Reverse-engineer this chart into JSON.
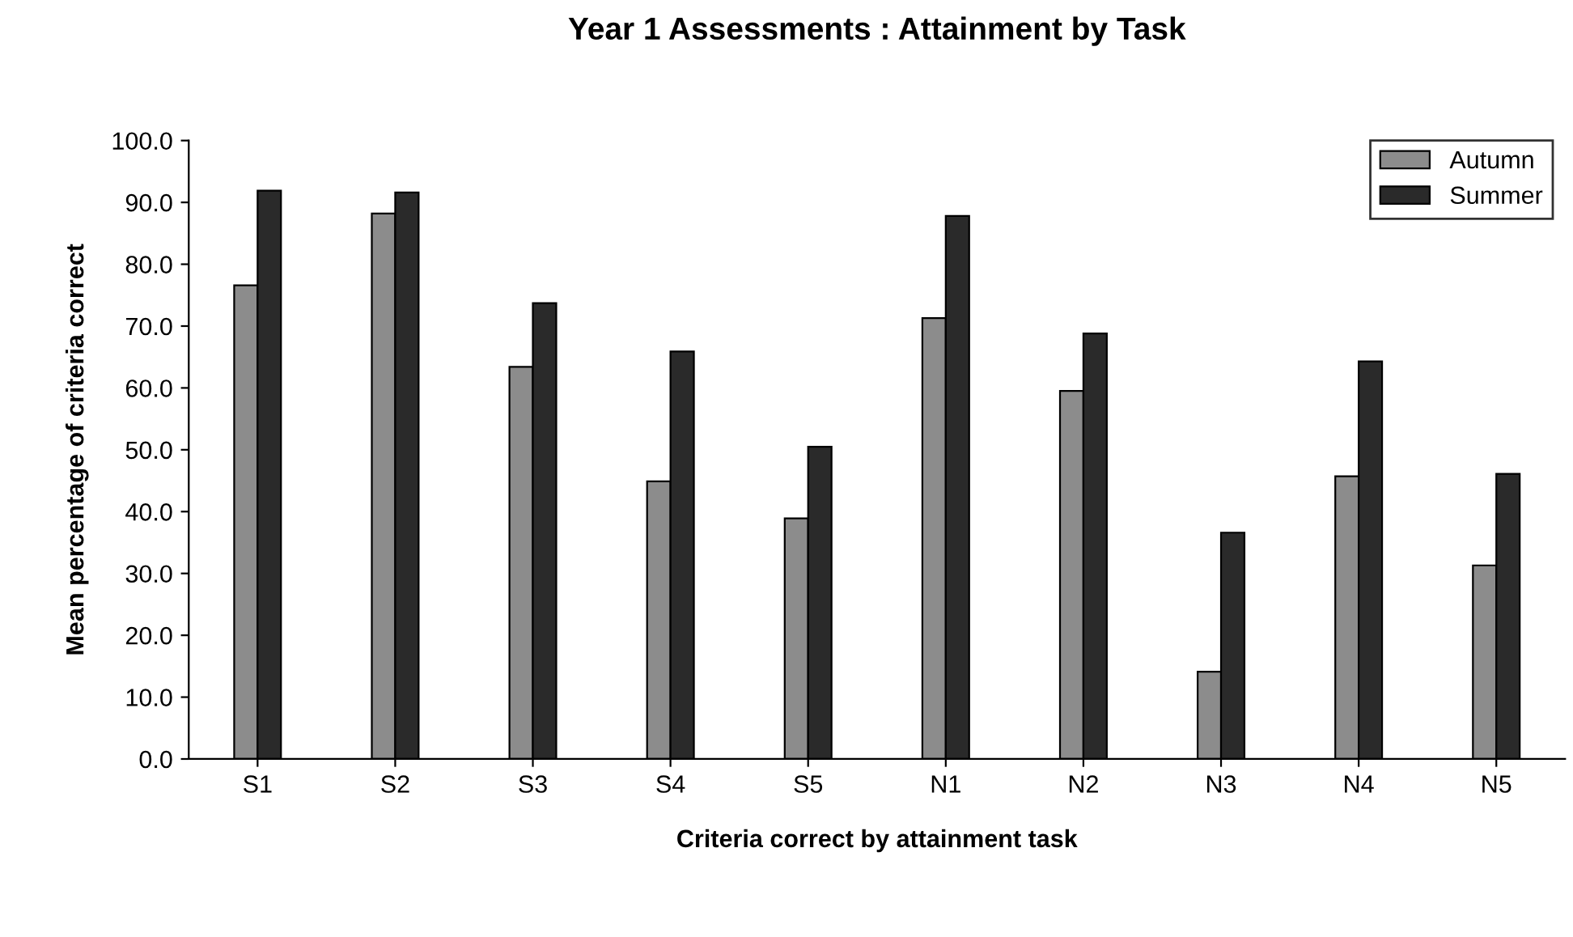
{
  "chart_data": {
    "type": "bar",
    "title": "Year 1 Assessments : Attainment by Task",
    "xlabel": "Criteria correct by attainment task",
    "ylabel": "Mean percentage of criteria correct",
    "categories": [
      "S1",
      "S2",
      "S3",
      "S4",
      "S5",
      "N1",
      "N2",
      "N3",
      "N4",
      "N5"
    ],
    "series": [
      {
        "name": "Autumn",
        "color": "#8c8c8c",
        "values": [
          76.6,
          88.2,
          63.4,
          44.9,
          38.9,
          71.3,
          59.5,
          14.1,
          45.7,
          31.3
        ]
      },
      {
        "name": "Summer",
        "color": "#2a2a2a",
        "values": [
          91.9,
          91.6,
          73.7,
          65.9,
          50.5,
          87.8,
          68.8,
          36.6,
          64.3,
          46.1
        ]
      }
    ],
    "ylim": [
      0,
      100
    ],
    "yticks": [
      {
        "value": 0,
        "label": "0.0"
      },
      {
        "value": 10,
        "label": "10.0"
      },
      {
        "value": 20,
        "label": "20.0"
      },
      {
        "value": 30,
        "label": "30.0"
      },
      {
        "value": 40,
        "label": "40.0"
      },
      {
        "value": 50,
        "label": "50.0"
      },
      {
        "value": 60,
        "label": "60.0"
      },
      {
        "value": 70,
        "label": "70.0"
      },
      {
        "value": 80,
        "label": "80.0"
      },
      {
        "value": 90,
        "label": "90.0"
      },
      {
        "value": 100,
        "label": "100.0"
      }
    ],
    "grid": false,
    "legend": "top right"
  }
}
